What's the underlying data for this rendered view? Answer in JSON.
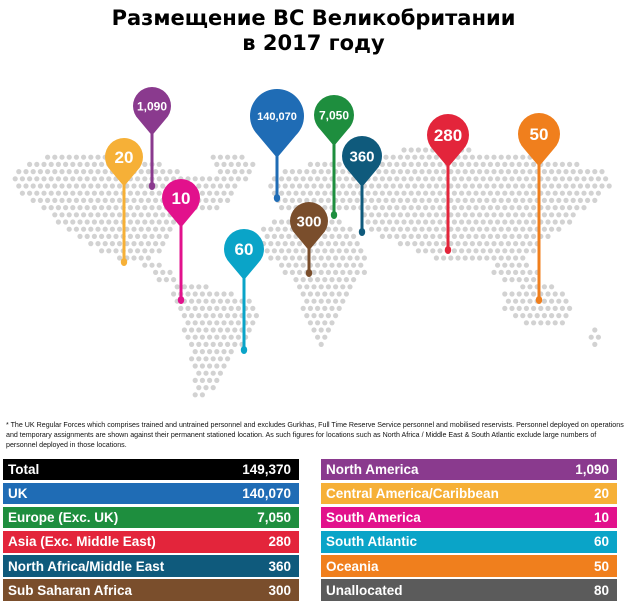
{
  "title": {
    "line1": "Размещение ВС Великобритании",
    "line2": "в 2017 году"
  },
  "colors": {
    "map_dots": "#d2d2d2",
    "total": "#000000",
    "uk": "#1f6cb5",
    "europe": "#1e8e3e",
    "asia": "#e3253b",
    "north_africa_middle_east": "#0f5a7c",
    "sub_saharan_africa": "#7a4e2c",
    "north_america": "#8a3a8e",
    "central_america_caribbean": "#f6b037",
    "south_america": "#e2118c",
    "south_atlantic": "#0aa4c8",
    "oceania": "#f07f1d",
    "unallocated": "#5b5b5b"
  },
  "pins": [
    {
      "id": "north-america",
      "label": "1,090",
      "color": "#8a3a8e"
    },
    {
      "id": "central-america-caribbean",
      "label": "20",
      "color": "#f6b037"
    },
    {
      "id": "south-america",
      "label": "10",
      "color": "#e2118c"
    },
    {
      "id": "uk",
      "label": "140,070",
      "color": "#1f6cb5"
    },
    {
      "id": "europe",
      "label": "7,050",
      "color": "#1e8e3e"
    },
    {
      "id": "north-africa-middle-east",
      "label": "360",
      "color": "#0f5a7c"
    },
    {
      "id": "sub-saharan-africa",
      "label": "300",
      "color": "#7a4e2c"
    },
    {
      "id": "south-atlantic",
      "label": "60",
      "color": "#0aa4c8"
    },
    {
      "id": "asia",
      "label": "280",
      "color": "#e3253b"
    },
    {
      "id": "oceania",
      "label": "50",
      "color": "#f07f1d"
    }
  ],
  "footnote": "* The UK Regular Forces which comprises trained and untrained personnel and excludes Gurkhas, Full Time Reserve Service personnel and mobilised reservists. Personnel deployed on operations and temporary assignments are shown against their permanent stationed location. As such figures for locations such as North Africa / Middle East & South Atlantic exclude large numbers of personnel deployed in those locations.",
  "table": {
    "left": [
      {
        "label": "Total",
        "value": "149,370",
        "color": "#000000"
      },
      {
        "label": "UK",
        "value": "140,070",
        "color": "#1f6cb5"
      },
      {
        "label": "Europe (Exc. UK)",
        "value": "7,050",
        "color": "#1e8e3e"
      },
      {
        "label": "Asia (Exc. Middle East)",
        "value": "280",
        "color": "#e3253b"
      },
      {
        "label": "North Africa/Middle East",
        "value": "360",
        "color": "#0f5a7c"
      },
      {
        "label": "Sub Saharan Africa",
        "value": "300",
        "color": "#7a4e2c"
      }
    ],
    "right": [
      {
        "label": "North America",
        "value": "1,090",
        "color": "#8a3a8e"
      },
      {
        "label": "Central America/Caribbean",
        "value": "20",
        "color": "#f6b037"
      },
      {
        "label": "South America",
        "value": "10",
        "color": "#e2118c"
      },
      {
        "label": "South Atlantic",
        "value": "60",
        "color": "#0aa4c8"
      },
      {
        "label": "Oceania",
        "value": "50",
        "color": "#f07f1d"
      },
      {
        "label": "Unallocated",
        "value": "80",
        "color": "#5b5b5b"
      }
    ]
  }
}
